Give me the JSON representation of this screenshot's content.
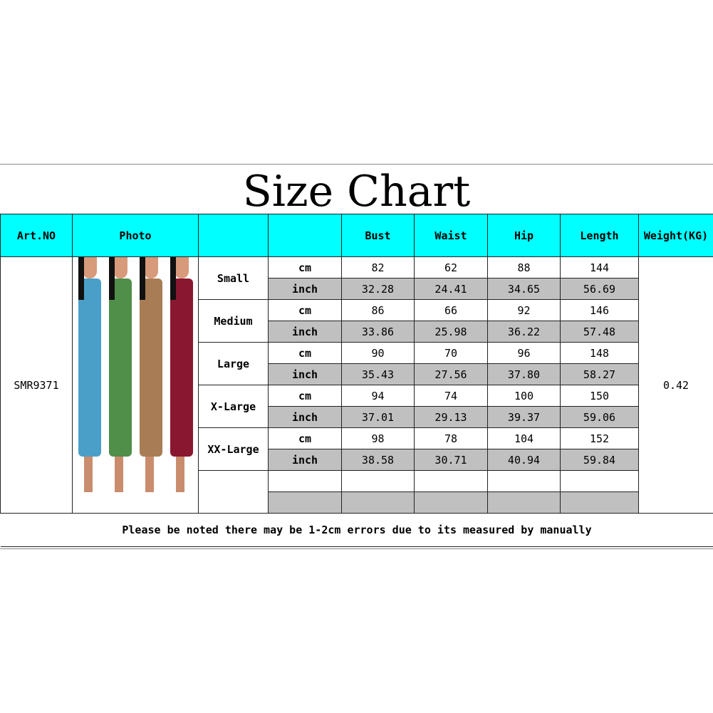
{
  "title": "Size Chart",
  "headers": [
    "Art.NO",
    "Photo",
    "",
    "",
    "Bust",
    "Waist",
    "Hip",
    "Length",
    "Weight(KG)"
  ],
  "art_no": "SMR9371",
  "weight": "0.42",
  "photo": {
    "description_colors": [
      "#4a9fc8",
      "#4f8f4a",
      "#a87d55",
      "#8a1730"
    ]
  },
  "units": {
    "cm": "cm",
    "inch": "inch"
  },
  "sizes": [
    {
      "name": "Small",
      "cm": [
        "82",
        "62",
        "88",
        "144"
      ],
      "inch": [
        "32.28",
        "24.41",
        "34.65",
        "56.69"
      ]
    },
    {
      "name": "Medium",
      "cm": [
        "86",
        "66",
        "92",
        "146"
      ],
      "inch": [
        "33.86",
        "25.98",
        "36.22",
        "57.48"
      ]
    },
    {
      "name": "Large",
      "cm": [
        "90",
        "70",
        "96",
        "148"
      ],
      "inch": [
        "35.43",
        "27.56",
        "37.80",
        "58.27"
      ]
    },
    {
      "name": "X-Large",
      "cm": [
        "94",
        "74",
        "100",
        "150"
      ],
      "inch": [
        "37.01",
        "29.13",
        "39.37",
        "59.06"
      ]
    },
    {
      "name": "XX-Large",
      "cm": [
        "98",
        "78",
        "104",
        "152"
      ],
      "inch": [
        "38.58",
        "30.71",
        "40.94",
        "59.84"
      ]
    }
  ],
  "colors": {
    "header_bg": "#00ffff",
    "inch_row_bg": "#c0c0c0"
  },
  "footer": "Please be noted there may be 1-2cm errors due to its measured by manually"
}
